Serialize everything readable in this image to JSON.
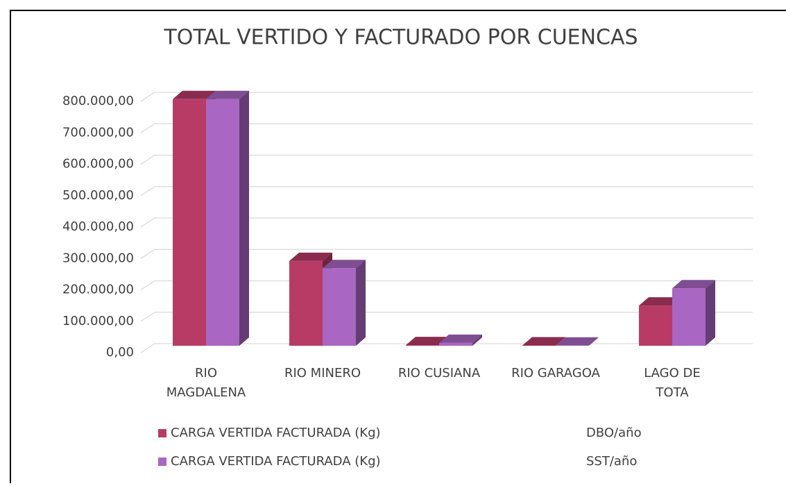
{
  "chart_data": {
    "type": "bar3d",
    "title": "TOTAL VERTIDO Y FACTURADO POR CUENCAS",
    "categories": [
      [
        "RIO",
        "MAGDALENA"
      ],
      [
        "RIO MINERO"
      ],
      [
        "RIO CUSIANA"
      ],
      [
        "RIO GARAGOA"
      ],
      [
        "LAGO DE",
        "TOTA"
      ]
    ],
    "series": [
      {
        "name": "CARGA VERTIDA FACTURADA (Kg)",
        "unit": "DBO/año",
        "color": "#b83b66",
        "values": [
          785000,
          270000,
          2000,
          1000,
          128000
        ]
      },
      {
        "name": "CARGA VERTIDA FACTURADA (Kg)",
        "unit": "SST/año",
        "color": "#a966c2",
        "values": [
          785000,
          247000,
          9000,
          500,
          183000
        ]
      }
    ],
    "ylim": [
      0,
      800000
    ],
    "yticks": [
      {
        "value": 0,
        "label": "0,00"
      },
      {
        "value": 100000,
        "label": "100.000,00"
      },
      {
        "value": 200000,
        "label": "200.000,00"
      },
      {
        "value": 300000,
        "label": "300.000,00"
      },
      {
        "value": 400000,
        "label": "400.000,00"
      },
      {
        "value": 500000,
        "label": "500.000,00"
      },
      {
        "value": 600000,
        "label": "600.000,00"
      },
      {
        "value": 700000,
        "label": "700.000,00"
      },
      {
        "value": 800000,
        "label": "800.000,00"
      }
    ],
    "grid": true
  }
}
